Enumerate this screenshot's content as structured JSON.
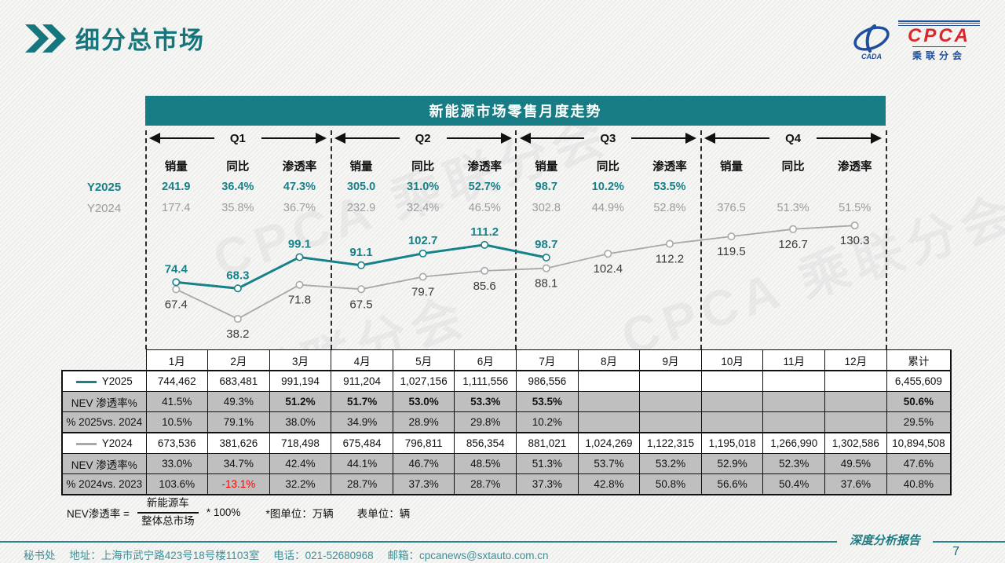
{
  "page": {
    "title": "细分总市场",
    "watermark": "CPCA 乘联分会"
  },
  "logo": {
    "text": "CPCA",
    "subtext": "乘联分会",
    "emblem_text": "CADA"
  },
  "colors": {
    "teal": "#15767d",
    "banner_teal": "#177c83",
    "line_2025": "#17818a",
    "line_2024": "#a8a8a8",
    "table_gray": "#bfbfbf",
    "negative_red": "#fe0000",
    "footer_teal": "#3d9096",
    "logo_red": "#d6292b",
    "logo_blue": "#1d4f9e"
  },
  "chart_data": {
    "type": "line",
    "title": "新能源市场零售月度走势",
    "x_categories": [
      "1月",
      "2月",
      "3月",
      "4月",
      "5月",
      "6月",
      "7月",
      "8月",
      "9月",
      "10月",
      "11月",
      "12月"
    ],
    "unit": "万辆",
    "ylim": [
      30,
      140
    ],
    "grid": false,
    "legend_position": "table-left",
    "series": [
      {
        "name": "Y2025",
        "color": "#17818a",
        "values": [
          74.4,
          68.3,
          99.1,
          91.1,
          102.7,
          111.2,
          98.7
        ]
      },
      {
        "name": "Y2024",
        "color": "#a8a8a8",
        "values": [
          67.4,
          38.2,
          71.8,
          67.5,
          79.7,
          85.6,
          88.1,
          102.4,
          112.2,
          119.5,
          126.7,
          130.3
        ]
      }
    ],
    "stat_headers": [
      "销量",
      "同比",
      "渗透率"
    ],
    "row_labels": {
      "y2025": "Y2025",
      "y2024": "Y2024"
    },
    "quarters": [
      {
        "label": "Q1",
        "y2025": [
          "241.9",
          "36.4%",
          "47.3%"
        ],
        "y2024": [
          "177.4",
          "35.8%",
          "36.7%"
        ]
      },
      {
        "label": "Q2",
        "y2025": [
          "305.0",
          "31.0%",
          "52.7%"
        ],
        "y2024": [
          "232.9",
          "32.4%",
          "46.5%"
        ]
      },
      {
        "label": "Q3",
        "y2025": [
          "98.7",
          "10.2%",
          "53.5%"
        ],
        "y2024": [
          "302.8",
          "44.9%",
          "52.8%"
        ]
      },
      {
        "label": "Q4",
        "y2025": [
          "",
          "",
          ""
        ],
        "y2024": [
          "376.5",
          "51.3%",
          "51.5%"
        ]
      }
    ]
  },
  "table": {
    "columns": [
      "1月",
      "2月",
      "3月",
      "4月",
      "5月",
      "6月",
      "7月",
      "8月",
      "9月",
      "10月",
      "11月",
      "12月",
      "累计"
    ],
    "groups": [
      {
        "legend": {
          "label": "Y2025",
          "color": "#17818a"
        },
        "rows": [
          {
            "label": "Y2025",
            "gray": false,
            "legend": true,
            "cells": [
              "744,462",
              "683,481",
              "991,194",
              "911,204",
              "1,027,156",
              "1,111,556",
              "986,556",
              "",
              "",
              "",
              "",
              "",
              "6,455,609"
            ]
          },
          {
            "label": "NEV 渗透率%",
            "gray": true,
            "cells": [
              "41.5%",
              "49.3%",
              "51.2%",
              "51.7%",
              "53.0%",
              "53.3%",
              "53.5%",
              "",
              "",
              "",
              "",
              "",
              "50.6%"
            ],
            "bold": [
              2,
              3,
              4,
              5,
              6,
              12
            ]
          },
          {
            "label": "% 2025vs. 2024",
            "gray": true,
            "cells": [
              "10.5%",
              "79.1%",
              "38.0%",
              "34.9%",
              "28.9%",
              "29.8%",
              "10.2%",
              "",
              "",
              "",
              "",
              "",
              "29.5%"
            ]
          }
        ]
      },
      {
        "legend": {
          "label": "Y2024",
          "color": "#a8a8a8"
        },
        "rows": [
          {
            "label": "Y2024",
            "gray": false,
            "legend": true,
            "cells": [
              "673,536",
              "381,626",
              "718,498",
              "675,484",
              "796,811",
              "856,354",
              "881,021",
              "1,024,269",
              "1,122,315",
              "1,195,018",
              "1,266,990",
              "1,302,586",
              "10,894,508"
            ]
          },
          {
            "label": "NEV 渗透率%",
            "gray": true,
            "cells": [
              "33.0%",
              "34.7%",
              "42.4%",
              "44.1%",
              "46.7%",
              "48.5%",
              "51.3%",
              "53.7%",
              "53.2%",
              "52.9%",
              "52.3%",
              "49.5%",
              "47.6%"
            ]
          },
          {
            "label": "% 2024vs. 2023",
            "gray": true,
            "cells": [
              "103.6%",
              "-13.1%",
              "32.2%",
              "28.7%",
              "37.3%",
              "28.7%",
              "37.3%",
              "42.8%",
              "50.8%",
              "56.6%",
              "50.4%",
              "37.6%",
              "40.8%"
            ],
            "red": [
              1
            ]
          }
        ]
      }
    ]
  },
  "footnote": {
    "prefix": "NEV渗透率 =",
    "numerator": "新能源车",
    "denominator": "整体总市场",
    "suffix": "* 100%",
    "unit_note_chart": "*图单位：万辆",
    "unit_note_table": "表单位：辆"
  },
  "bottom": {
    "secretariat": "秘书处",
    "address": "地址：上海市武宁路423号18号楼1103室",
    "phone": "电话：021-52680968",
    "email": "邮箱：cpcanews@sxtauto.com.cn",
    "report": "深度分析报告",
    "page": "7"
  }
}
